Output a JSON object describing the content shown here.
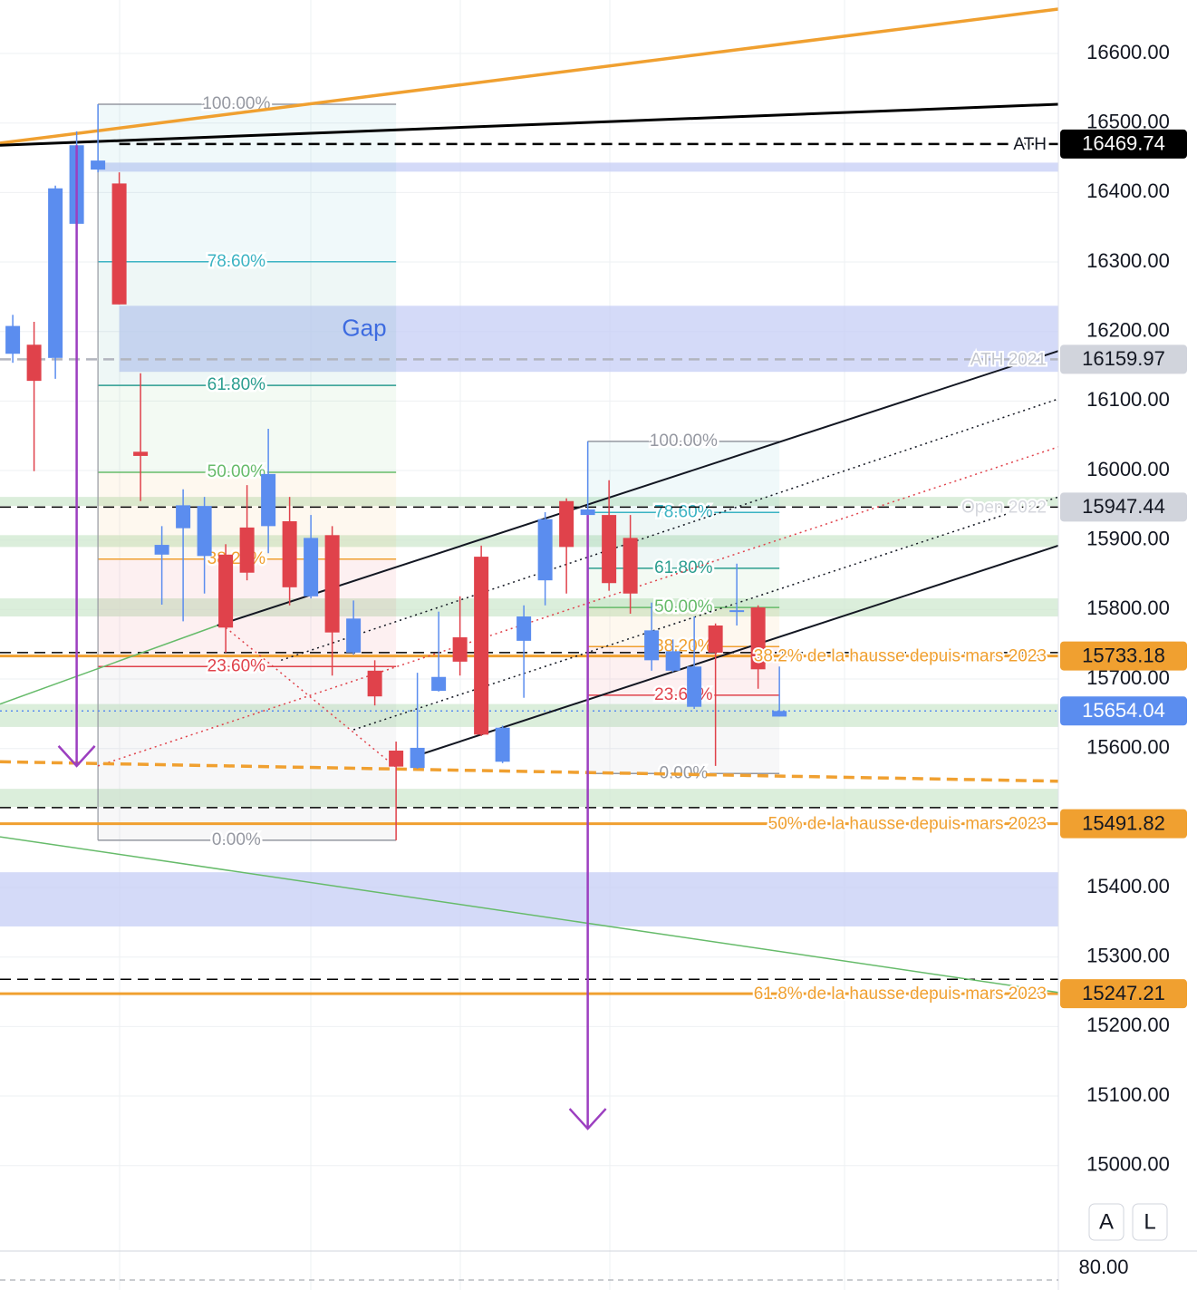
{
  "chart_data": {
    "type": "candlestick",
    "xlim": [
      -0.6,
      49.1
    ],
    "ylim": [
      14877,
      16677
    ],
    "grid": true,
    "yticks": [
      {
        "value": 16600,
        "label": "16600.00"
      },
      {
        "value": 16500,
        "label": "16500.00"
      },
      {
        "value": 16400,
        "label": "16400.00"
      },
      {
        "value": 16300,
        "label": "16300.00"
      },
      {
        "value": 16200,
        "label": "16200.00"
      },
      {
        "value": 16100,
        "label": "16100.00"
      },
      {
        "value": 16000,
        "label": "16000.00"
      },
      {
        "value": 15900,
        "label": "15900.00"
      },
      {
        "value": 15800,
        "label": "15800.00"
      },
      {
        "value": 15700,
        "label": "15700.00"
      },
      {
        "value": 15600,
        "label": "15600.00"
      },
      {
        "value": 15400,
        "label": "15400.00"
      },
      {
        "value": 15300,
        "label": "15300.00"
      },
      {
        "value": 15200,
        "label": "15200.00"
      },
      {
        "value": 15100,
        "label": "15100.00"
      },
      {
        "value": 15000,
        "label": "15000.00"
      }
    ],
    "up_color": "#5b8def",
    "down_color": "#e0424b",
    "open": [
      16168,
      16181,
      16162,
      16355,
      16433,
      16413,
      16027,
      15879,
      15917,
      15877,
      15879,
      15918,
      15920,
      15927,
      15819,
      15907,
      15738,
      15712,
      15597,
      15572,
      15683,
      15760,
      15876,
      15581,
      15755,
      15842,
      15956,
      15936,
      15936,
      15903,
      15727,
      15712,
      15660,
      15777,
      15797,
      15803,
      15646
    ],
    "high": [
      16224,
      16214,
      16410,
      16488,
      16527,
      16429,
      16140,
      15920,
      15973,
      15962,
      15894,
      15979,
      16060,
      15962,
      15936,
      15920,
      15813,
      15727,
      15610,
      15709,
      15797,
      15819,
      15892,
      15633,
      15806,
      15940,
      15960,
      16042,
      15986,
      15936,
      15810,
      15757,
      15790,
      15780,
      15866,
      15806,
      15718
    ],
    "low": [
      16155,
      15999,
      16132,
      16335,
      16429,
      16239,
      15956,
      15807,
      15783,
      15823,
      15738,
      15842,
      15881,
      15806,
      15816,
      15705,
      15735,
      15662,
      15468,
      15571,
      15682,
      15705,
      15618,
      15579,
      15673,
      15806,
      15823,
      15933,
      15827,
      15794,
      15712,
      15710,
      15657,
      15575,
      15777,
      15686,
      15646
    ],
    "close": [
      16208,
      16129,
      16406,
      16468,
      16446,
      16239,
      16021,
      15893,
      15950,
      15949,
      15774,
      15853,
      15995,
      15832,
      15903,
      15767,
      15787,
      15675,
      15574,
      15601,
      15703,
      15725,
      15620,
      15630,
      15790,
      15930,
      15890,
      15944,
      15838,
      15823,
      15770,
      15740,
      15718,
      15738,
      15799,
      15714,
      15654
    ],
    "zones": [
      {
        "top": 16443,
        "bottom": 16430,
        "x_start": 4,
        "color": "#c5cdf5"
      },
      {
        "top": 16237,
        "bottom": 16142,
        "x_start": 5,
        "color": "#c5cdf5",
        "label": "Gap"
      },
      {
        "top": 15962,
        "bottom": 15949,
        "x_start": -0.6,
        "color": "#cfe8cf"
      },
      {
        "top": 15907,
        "bottom": 15890,
        "x_start": -0.6,
        "color": "#cfe8cf"
      },
      {
        "top": 15816,
        "bottom": 15790,
        "x_start": -0.6,
        "color": "#cfe8cf"
      },
      {
        "top": 15664,
        "bottom": 15631,
        "x_start": -0.6,
        "color": "#cfe8cf"
      },
      {
        "top": 15542,
        "bottom": 15516,
        "x_start": -0.6,
        "color": "#cfe8cf"
      },
      {
        "top": 15422,
        "bottom": 15344,
        "x_start": -0.6,
        "color": "#c5cdf5"
      }
    ],
    "levels": [
      {
        "value": 16469.74,
        "color": "#000000",
        "style": "dashed",
        "width": 2.5,
        "x_start": 5,
        "label": "ATH",
        "label_color": "#131722",
        "tag_color": "#000000",
        "tag_text": "#ffffff"
      },
      {
        "value": 16159.97,
        "color": "#b2b5be",
        "style": "dashed",
        "width": 2.5,
        "x_start": -0.6,
        "label": "ATH 2021",
        "label_color": "#c3c6ce",
        "tag_color": "#d1d4dc",
        "tag_text": "#131722"
      },
      {
        "value": 15947.44,
        "color": "#000000",
        "style": "dashed",
        "width": 1.5,
        "x_start": -0.6,
        "label": "Open 2022",
        "label_color": "#d5d7dd",
        "tag_color": "#d1d4dc",
        "tag_text": "#131722"
      },
      {
        "value": 15738,
        "color": "#000000",
        "style": "dashed",
        "width": 1.5,
        "x_start": -0.6
      },
      {
        "value": 15733.18,
        "color": "#f0a030",
        "style": "solid",
        "width": 3,
        "x_start": -0.6,
        "label": "38.2% de la hausse depuis mars 2023",
        "label_color": "#f0a030",
        "tag_color": "#f0a030",
        "tag_text": "#131722"
      },
      {
        "value": 15654.04,
        "color": "#5b8def",
        "style": "dotted",
        "width": 1.5,
        "x_start": -0.6,
        "tag_color": "#5b8def",
        "tag_text": "#ffffff"
      },
      {
        "value": 15515,
        "color": "#000000",
        "style": "dashed",
        "width": 1.5,
        "x_start": -0.6
      },
      {
        "value": 15491.82,
        "color": "#f0a030",
        "style": "solid",
        "width": 3,
        "x_start": -0.6,
        "label": "50% de la hausse depuis mars 2023",
        "label_color": "#f0a030",
        "tag_color": "#f0a030",
        "tag_text": "#131722"
      },
      {
        "value": 15268,
        "color": "#000000",
        "style": "dashed",
        "width": 1.5,
        "x_start": -0.6
      },
      {
        "value": 15247.21,
        "color": "#f0a030",
        "style": "solid",
        "width": 3,
        "x_start": -0.6,
        "label": "61.8% de la hausse depuis mars 2023",
        "label_color": "#f0a030",
        "tag_color": "#f0a030",
        "tag_text": "#131722"
      }
    ],
    "trend_lines": [
      {
        "points": [
          [
            -0.6,
            16471
          ],
          [
            49.1,
            16664
          ]
        ],
        "color": "#f0a030",
        "width": 3.5,
        "style": "solid"
      },
      {
        "points": [
          [
            -0.6,
            16468
          ],
          [
            49.1,
            16527
          ]
        ],
        "color": "#000000",
        "width": 3,
        "style": "solid"
      },
      {
        "points": [
          [
            9.6,
            15777
          ],
          [
            49.1,
            16172
          ]
        ],
        "color": "#131722",
        "width": 2,
        "style": "solid"
      },
      {
        "points": [
          [
            12.6,
            15727
          ],
          [
            49.1,
            16103
          ]
        ],
        "color": "#131722",
        "width": 1.5,
        "style": "dotted"
      },
      {
        "points": [
          [
            4,
            15575
          ],
          [
            49.1,
            16034
          ]
        ],
        "color": "#e0424b",
        "width": 1.5,
        "style": "dotted"
      },
      {
        "points": [
          [
            16,
            15627
          ],
          [
            49.1,
            15962
          ]
        ],
        "color": "#131722",
        "width": 1.5,
        "style": "dotted"
      },
      {
        "points": [
          [
            19,
            15590
          ],
          [
            49.1,
            15892
          ]
        ],
        "color": "#131722",
        "width": 2,
        "style": "solid"
      },
      {
        "points": [
          [
            -0.6,
            15581
          ],
          [
            49.1,
            15553
          ]
        ],
        "color": "#f0a030",
        "width": 3.5,
        "style": "dashed"
      },
      {
        "points": [
          [
            -0.6,
            15473
          ],
          [
            49.1,
            15249
          ]
        ],
        "color": "#66bb6a",
        "width": 1.5,
        "style": "solid"
      },
      {
        "points": [
          [
            -0.6,
            15664
          ],
          [
            9.6,
            15777
          ]
        ],
        "color": "#66bb6a",
        "width": 1.5,
        "style": "solid"
      },
      {
        "points": [
          [
            10,
            15774
          ],
          [
            18,
            15573
          ]
        ],
        "color": "#e0424b",
        "width": 1.5,
        "style": "dotted"
      }
    ],
    "arrows": [
      {
        "x": 3,
        "from": 16468,
        "to": 15575,
        "color": "#9c3fc0"
      },
      {
        "x": 27,
        "from": 15936,
        "to": 15053,
        "color": "#9c3fc0"
      }
    ],
    "fibs": [
      {
        "high": 16527,
        "low": 15468,
        "x_start": 4,
        "x_end": 18,
        "label_x": 10.5,
        "levels": [
          {
            "value": 100,
            "label": "100.00%",
            "color": "#9598a1"
          },
          {
            "value": 78.6,
            "label": "78.60%",
            "color": "#3bb3c3"
          },
          {
            "value": 61.8,
            "label": "61.80%",
            "color": "#2a9d8f"
          },
          {
            "value": 50,
            "label": "50.00%",
            "color": "#66bb6a"
          },
          {
            "value": 38.2,
            "label": "38.20%",
            "color": "#f0a030"
          },
          {
            "value": 23.6,
            "label": "23.60%",
            "color": "#e0424b"
          },
          {
            "value": 0,
            "label": "0.00%",
            "color": "#9598a1"
          }
        ]
      },
      {
        "high": 16042,
        "low": 15564,
        "x_start": 27,
        "x_end": 36,
        "label_x": 31.5,
        "levels": [
          {
            "value": 100,
            "label": "100.00%",
            "color": "#9598a1"
          },
          {
            "value": 78.6,
            "label": "78.60%",
            "color": "#3bb3c3"
          },
          {
            "value": 61.8,
            "label": "61.80%",
            "color": "#2a9d8f"
          },
          {
            "value": 50,
            "label": "50.00%",
            "color": "#66bb6a"
          },
          {
            "value": 38.2,
            "label": "38.20%",
            "color": "#f0a030"
          },
          {
            "value": 23.6,
            "label": "23.60%",
            "color": "#e0424b"
          },
          {
            "value": 0,
            "label": "0.00%",
            "color": "#9598a1"
          }
        ]
      }
    ]
  },
  "lower_pane": {
    "yticks": [
      {
        "value": 80,
        "label": "80.00"
      }
    ]
  },
  "buttons": [
    "A",
    "L"
  ]
}
